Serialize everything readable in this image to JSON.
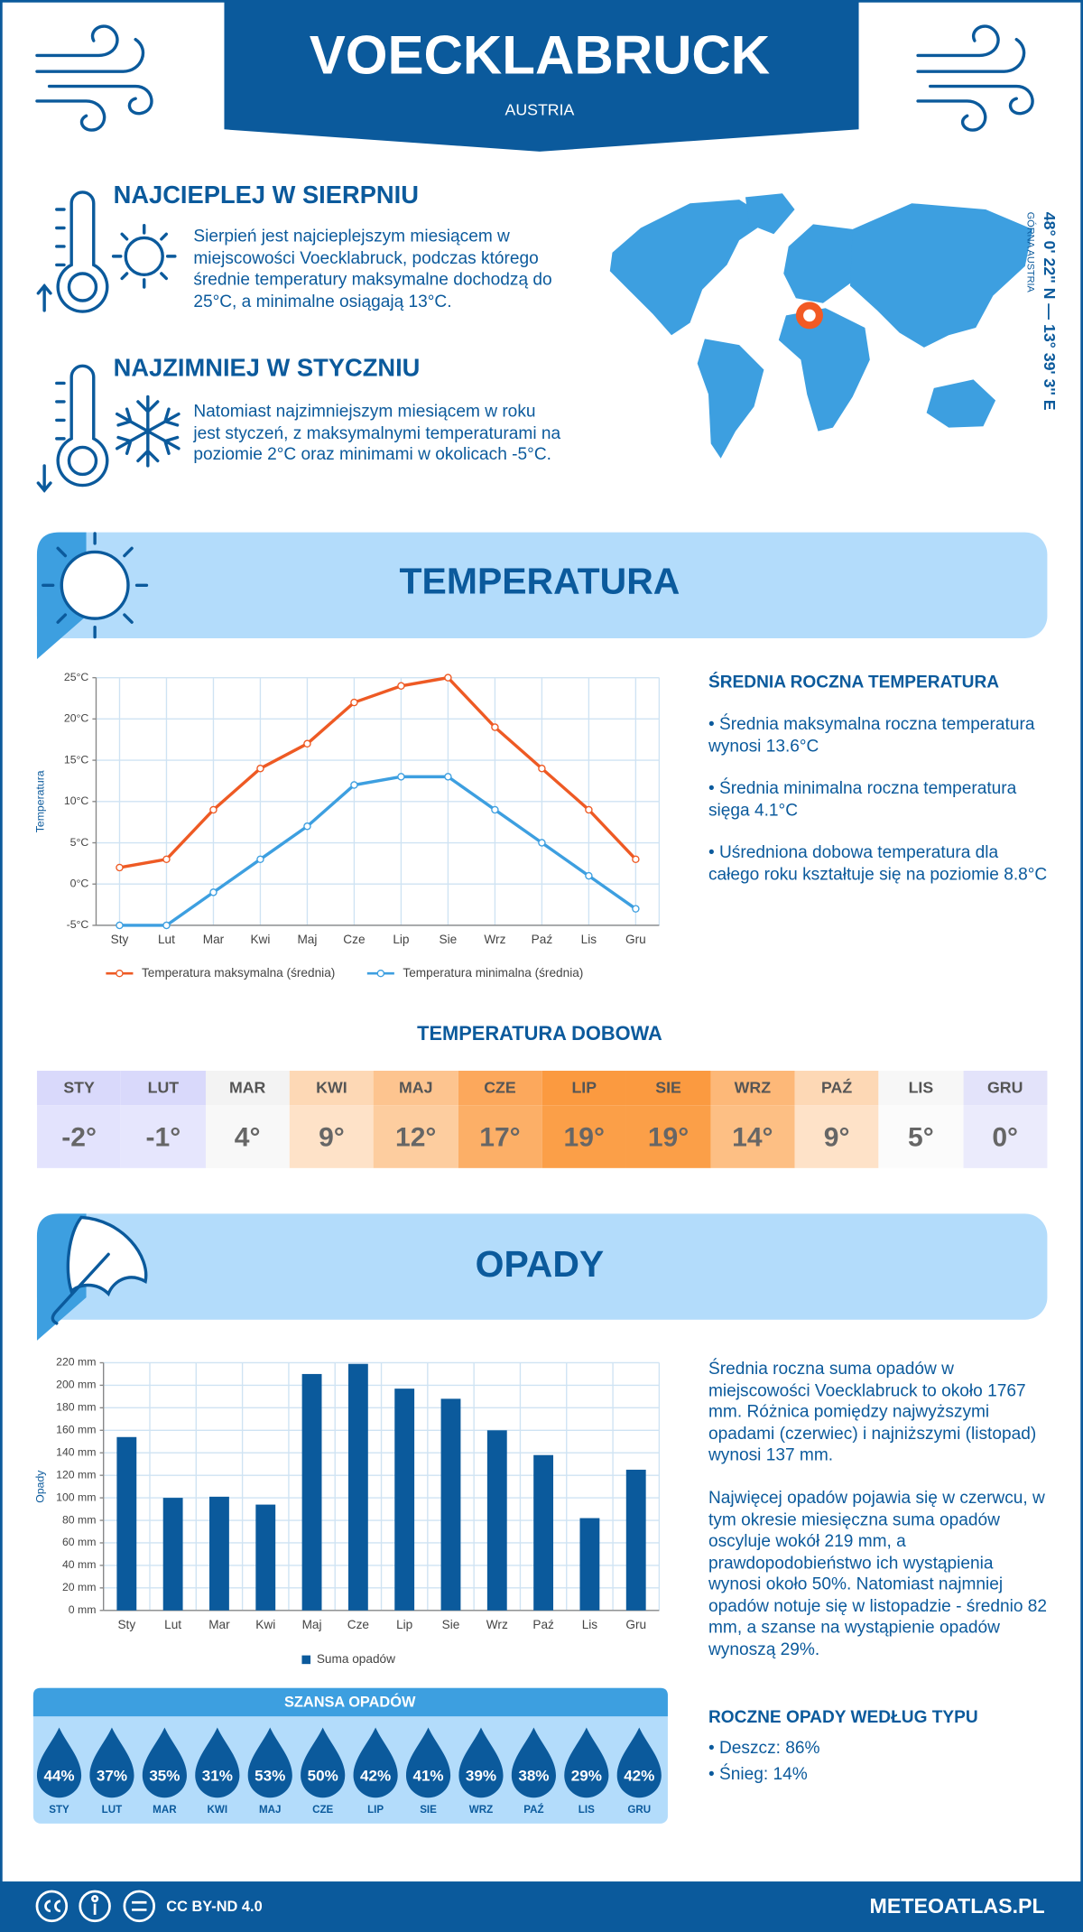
{
  "header": {
    "title": "VOECKLABRUCK",
    "subtitle": "AUSTRIA"
  },
  "warmest": {
    "title": "NAJCIEPLEJ W SIERPNIU",
    "text": "Sierpień jest najcieplejszym miesiącem w miejscowości Voecklabruck, podczas którego średnie temperatury maksymalne dochodzą do 25°C, a minimalne osiągają 13°C."
  },
  "coldest": {
    "title": "NAJZIMNIEJ W STYCZNIU",
    "text": "Natomiast najzimniejszym miesiącem w roku jest styczeń, z maksymalnymi temperaturami na poziomie 2°C oraz minimami w okolicach -5°C."
  },
  "location": {
    "coordinates": "48° 0' 22'' N — 13° 39' 3'' E",
    "region": "GÓRNA AUSTRIA"
  },
  "temperature_section": {
    "title": "TEMPERATURA",
    "summary_title": "ŚREDNIA ROCZNA TEMPERATURA",
    "summary": [
      "• Średnia maksymalna roczna temperatura wynosi 13.6°C",
      "• Średnia minimalna roczna temperatura sięga 4.1°C",
      "• Uśredniona dobowa temperatura dla całego roku kształtuje się na poziomie 8.8°C"
    ]
  },
  "chart_data": [
    {
      "type": "line",
      "y_label": "Temperatura",
      "categories": [
        "Sty",
        "Lut",
        "Mar",
        "Kwi",
        "Maj",
        "Cze",
        "Lip",
        "Sie",
        "Wrz",
        "Paź",
        "Lis",
        "Gru"
      ],
      "series": [
        {
          "name": "Temperatura maksymalna (średnia)",
          "color": "#ee5a24",
          "values": [
            2,
            3,
            9,
            14,
            17,
            22,
            24,
            25,
            19,
            14,
            9,
            3
          ]
        },
        {
          "name": "Temperatura minimalna (średnia)",
          "color": "#3d9fe0",
          "values": [
            -5,
            -5,
            -1,
            3,
            7,
            12,
            13,
            13,
            9,
            5,
            1,
            -3
          ]
        }
      ],
      "ylim": [
        -5,
        25
      ],
      "yticks": [
        {
          "value": -5,
          "label": "-5°C"
        },
        {
          "value": 0,
          "label": "0°C"
        },
        {
          "value": 5,
          "label": "5°C"
        },
        {
          "value": 10,
          "label": "10°C"
        },
        {
          "value": 15,
          "label": "15°C"
        },
        {
          "value": 20,
          "label": "20°C"
        },
        {
          "value": 25,
          "label": "25°C"
        }
      ],
      "grid": true
    },
    {
      "type": "bar",
      "y_label": "Opady",
      "categories": [
        "Sty",
        "Lut",
        "Mar",
        "Kwi",
        "Maj",
        "Cze",
        "Lip",
        "Sie",
        "Wrz",
        "Paź",
        "Lis",
        "Gru"
      ],
      "series": [
        {
          "name": "Suma opadów",
          "color": "#0b5a9c",
          "values": [
            154,
            100,
            101,
            94,
            210,
            219,
            197,
            188,
            160,
            138,
            82,
            125
          ]
        }
      ],
      "ylim": [
        0,
        220
      ],
      "yticks": [
        {
          "value": 0,
          "label": "0 mm"
        },
        {
          "value": 20,
          "label": "20 mm"
        },
        {
          "value": 40,
          "label": "40 mm"
        },
        {
          "value": 60,
          "label": "60 mm"
        },
        {
          "value": 80,
          "label": "80 mm"
        },
        {
          "value": 100,
          "label": "100 mm"
        },
        {
          "value": 120,
          "label": "120 mm"
        },
        {
          "value": 140,
          "label": "140 mm"
        },
        {
          "value": 160,
          "label": "160 mm"
        },
        {
          "value": 180,
          "label": "180 mm"
        },
        {
          "value": 200,
          "label": "200 mm"
        },
        {
          "value": 220,
          "label": "220 mm"
        }
      ],
      "grid": true
    }
  ],
  "daily_temperature": {
    "title": "TEMPERATURA DOBOWA",
    "months": [
      "STY",
      "LUT",
      "MAR",
      "KWI",
      "MAJ",
      "CZE",
      "LIP",
      "SIE",
      "WRZ",
      "PAŹ",
      "LIS",
      "GRU"
    ],
    "values": [
      "-2°",
      "-1°",
      "4°",
      "9°",
      "12°",
      "17°",
      "19°",
      "19°",
      "14°",
      "9°",
      "5°",
      "0°"
    ],
    "header_colors": [
      "#d9d9fb",
      "#d9d9fb",
      "#f3f3f3",
      "#fdd8b5",
      "#fdc48f",
      "#fca85c",
      "#fb9a40",
      "#fb9a40",
      "#fdb878",
      "#fdd8b5",
      "#f7f7f7",
      "#e3e3fa"
    ],
    "value_colors": [
      "#e3e3fd",
      "#e6e6fd",
      "#f8f8f8",
      "#fee2c8",
      "#fdcd9f",
      "#fcaf67",
      "#fb9f48",
      "#fb9f48",
      "#fdbf84",
      "#fee2c8",
      "#fbfbfb",
      "#ebebfc"
    ]
  },
  "precipitation_section": {
    "title": "OPADY",
    "paragraphs": [
      "Średnia roczna suma opadów w miejscowości Voecklabruck to około 1767 mm. Różnica pomiędzy najwyższymi opadami (czerwiec) i najniższymi (listopad) wynosi 137 mm.",
      "Najwięcej opadów pojawia się w czerwcu, w tym okresie miesięczna suma opadów oscyluje wokół 219 mm, a prawdopodobieństwo ich wystąpienia wynosi około 50%. Natomiast najmniej opadów notuje się w listopadzie - średnio 82 mm, a szanse na wystąpienie opadów wynoszą 29%."
    ]
  },
  "precipitation_chance": {
    "title": "SZANSA OPADÓW",
    "months": [
      "STY",
      "LUT",
      "MAR",
      "KWI",
      "MAJ",
      "CZE",
      "LIP",
      "SIE",
      "WRZ",
      "PAŹ",
      "LIS",
      "GRU"
    ],
    "values": [
      "44%",
      "37%",
      "35%",
      "31%",
      "53%",
      "50%",
      "42%",
      "41%",
      "39%",
      "38%",
      "29%",
      "42%"
    ]
  },
  "precipitation_types": {
    "title": "ROCZNE OPADY WEDŁUG TYPU",
    "items": [
      "• Deszcz: 86%",
      "• Śnieg: 14%"
    ]
  },
  "footer": {
    "license": "CC BY-ND 4.0",
    "site": "METEOATLAS.PL"
  }
}
